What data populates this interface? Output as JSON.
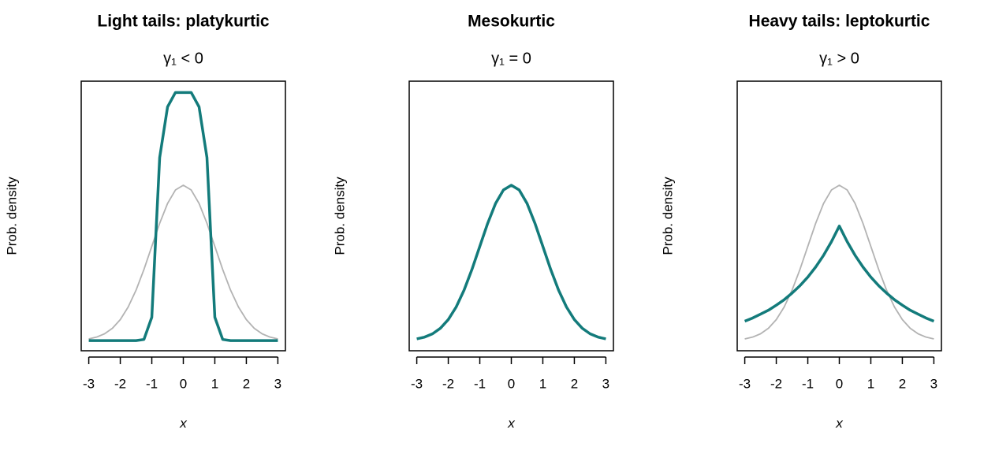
{
  "chart_data": [
    {
      "type": "line",
      "title": "Light tails: platykurtic",
      "subtitle": "γ₁ < 0",
      "xlabel": "x",
      "ylabel": "Prob. density",
      "x": [
        -3,
        -2.75,
        -2.5,
        -2.25,
        -2,
        -1.75,
        -1.5,
        -1.25,
        -1,
        -0.75,
        -0.5,
        -0.25,
        0,
        0.25,
        0.5,
        0.75,
        1,
        1.25,
        1.5,
        1.75,
        2,
        2.25,
        2.5,
        2.75,
        3
      ],
      "series": [
        {
          "color": "#b3b3b3",
          "values": [
            0.0044,
            0.0091,
            0.0175,
            0.0317,
            0.054,
            0.0863,
            0.1295,
            0.1826,
            0.242,
            0.3011,
            0.3521,
            0.3867,
            0.3989,
            0.3867,
            0.3521,
            0.3011,
            0.242,
            0.1826,
            0.1295,
            0.0863,
            0.054,
            0.0317,
            0.0175,
            0.0091,
            0.0044
          ]
        },
        {
          "color": "#137b7b",
          "values": [
            0,
            0,
            0,
            0,
            0,
            0,
            0,
            0.003,
            0.06,
            0.47,
            0.6,
            0.637,
            0.637,
            0.637,
            0.6,
            0.47,
            0.06,
            0.003,
            0,
            0,
            0,
            0,
            0,
            0,
            0
          ]
        }
      ],
      "xlim": [
        -3.24,
        3.24
      ],
      "xticks": [
        -3,
        -2,
        -1,
        0,
        1,
        2,
        3
      ],
      "ylim": [
        -0.026,
        0.666
      ],
      "grid": false
    },
    {
      "type": "line",
      "title": "Mesokurtic",
      "subtitle": "γ₁ = 0",
      "xlabel": "x",
      "ylabel": "Prob. density",
      "x": [
        -3,
        -2.75,
        -2.5,
        -2.25,
        -2,
        -1.75,
        -1.5,
        -1.25,
        -1,
        -0.75,
        -0.5,
        -0.25,
        0,
        0.25,
        0.5,
        0.75,
        1,
        1.25,
        1.5,
        1.75,
        2,
        2.25,
        2.5,
        2.75,
        3
      ],
      "series": [
        {
          "color": "#137b7b",
          "values": [
            0.0044,
            0.0091,
            0.0175,
            0.0317,
            0.054,
            0.0863,
            0.1295,
            0.1826,
            0.242,
            0.3011,
            0.3521,
            0.3867,
            0.3989,
            0.3867,
            0.3521,
            0.3011,
            0.242,
            0.1826,
            0.1295,
            0.0863,
            0.054,
            0.0317,
            0.0175,
            0.0091,
            0.0044
          ]
        }
      ],
      "xlim": [
        -3.24,
        3.24
      ],
      "xticks": [
        -3,
        -2,
        -1,
        0,
        1,
        2,
        3
      ],
      "ylim": [
        -0.026,
        0.666
      ],
      "grid": false
    },
    {
      "type": "line",
      "title": "Heavy tails: leptokurtic",
      "subtitle": "γ₁ > 0",
      "xlabel": "x",
      "ylabel": "Prob. density",
      "x": [
        -3,
        -2.75,
        -2.5,
        -2.25,
        -2,
        -1.75,
        -1.5,
        -1.25,
        -1,
        -0.75,
        -0.5,
        -0.25,
        0,
        0.25,
        0.5,
        0.75,
        1,
        1.25,
        1.5,
        1.75,
        2,
        2.25,
        2.5,
        2.75,
        3
      ],
      "series": [
        {
          "color": "#b3b3b3",
          "values": [
            0.0044,
            0.0091,
            0.0175,
            0.0317,
            0.054,
            0.0863,
            0.1295,
            0.1826,
            0.242,
            0.3011,
            0.3521,
            0.3867,
            0.3989,
            0.3867,
            0.3521,
            0.3011,
            0.242,
            0.1826,
            0.1295,
            0.0863,
            0.054,
            0.0317,
            0.0175,
            0.0091,
            0.0044
          ]
        },
        {
          "color": "#137b7b",
          "values": [
            0.05,
            0.058,
            0.068,
            0.078,
            0.091,
            0.105,
            0.122,
            0.141,
            0.163,
            0.189,
            0.219,
            0.254,
            0.294,
            0.254,
            0.219,
            0.189,
            0.163,
            0.141,
            0.122,
            0.105,
            0.091,
            0.078,
            0.068,
            0.058,
            0.05
          ]
        }
      ],
      "xlim": [
        -3.24,
        3.24
      ],
      "xticks": [
        -3,
        -2,
        -1,
        0,
        1,
        2,
        3
      ],
      "ylim": [
        -0.026,
        0.666
      ],
      "grid": false
    }
  ]
}
